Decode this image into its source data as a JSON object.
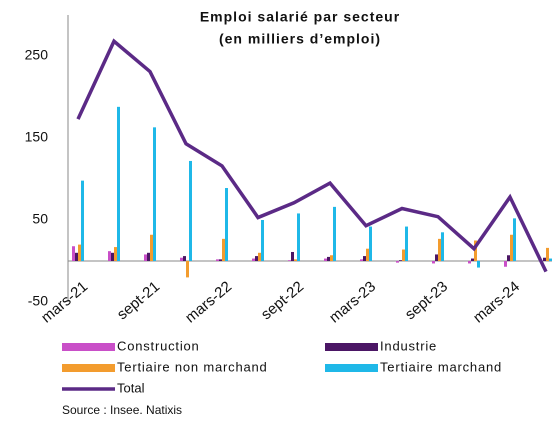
{
  "chart_data": {
    "type": "bar",
    "title": "Emploi salarié par secteur",
    "subtitle": "(en milliers d’emploi)",
    "source": "Source : Insee. Natixis",
    "categories": [
      "mars-21",
      null,
      "sept-21",
      null,
      "mars-22",
      null,
      "sept-22",
      null,
      "mars-23",
      null,
      "sept-23",
      null,
      "mars-24",
      null
    ],
    "series": [
      {
        "name": "Construction",
        "color": "#c94fc8",
        "values": [
          18,
          12,
          8,
          4,
          2,
          3,
          1,
          3,
          2,
          -2,
          -3,
          -3,
          -7,
          -2
        ]
      },
      {
        "name": "Industrie",
        "color": "#4b1665",
        "values": [
          10,
          10,
          10,
          6,
          2,
          6,
          11,
          5,
          6,
          1,
          8,
          3,
          7,
          4
        ]
      },
      {
        "name": "Tertiaire non marchand",
        "color": "#f39c2e",
        "values": [
          20,
          17,
          32,
          -20,
          27,
          10,
          2,
          7,
          15,
          14,
          27,
          25,
          32,
          16
        ]
      },
      {
        "name": "Tertiaire marchand",
        "color": "#1fb8e8",
        "values": [
          98,
          188,
          163,
          122,
          89,
          50,
          58,
          66,
          42,
          42,
          35,
          -8,
          52,
          3
        ]
      }
    ],
    "line_series": {
      "name": "Total",
      "color": "#5b2a86",
      "values": [
        173,
        268,
        231,
        143,
        116,
        53,
        71,
        95,
        43,
        64,
        54,
        15,
        78,
        -13
      ]
    },
    "ylim": [
      -50,
      300
    ],
    "yticks": [
      -50,
      50,
      150,
      250
    ],
    "grid": false
  }
}
